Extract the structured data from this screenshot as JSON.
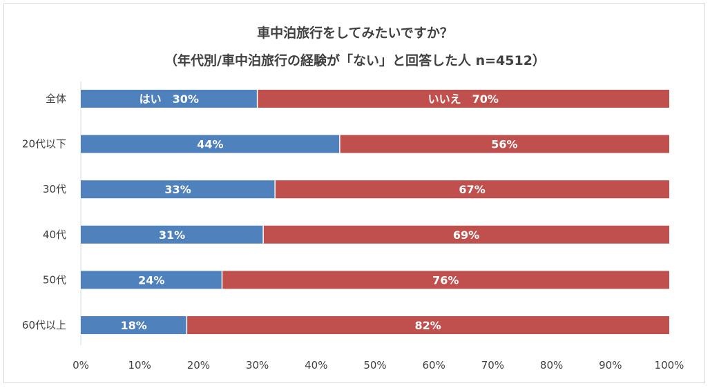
{
  "chart_data": {
    "type": "bar",
    "orientation": "horizontal",
    "stacked": true,
    "title": "車中泊旅行をしてみたいですか？",
    "subtitle": "（年代別/車中泊旅行の経験が「ない」と回答した人 n=4512）",
    "categories": [
      "全体",
      "20代以下",
      "30代",
      "40代",
      "50代",
      "60代以上"
    ],
    "series": [
      {
        "name": "はい",
        "color": "#4f81bd",
        "values": [
          30,
          44,
          33,
          31,
          24,
          18
        ],
        "labels": [
          "はい　30%",
          "44%",
          "33%",
          "31%",
          "24%",
          "18%"
        ]
      },
      {
        "name": "いいえ",
        "color": "#c0504d",
        "values": [
          70,
          56,
          67,
          69,
          76,
          82
        ],
        "labels": [
          "いいえ　70%",
          "56%",
          "67%",
          "69%",
          "76%",
          "82%"
        ]
      }
    ],
    "xlim": [
      0,
      100
    ],
    "xticks": [
      "0%",
      "10%",
      "20%",
      "30%",
      "40%",
      "50%",
      "60%",
      "70%",
      "80%",
      "90%",
      "100%"
    ],
    "xlabel": "",
    "ylabel": "",
    "grid": false,
    "legend": "none"
  }
}
